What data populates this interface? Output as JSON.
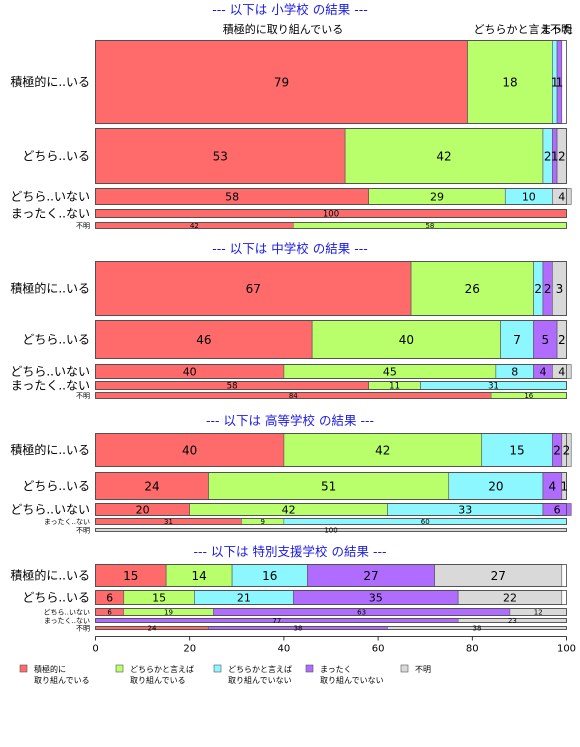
{
  "chart_data": {
    "type": "bar",
    "orientation": "horizontal",
    "stacked": "100%",
    "xlim": [
      0,
      100
    ],
    "xticks": [
      0,
      20,
      40,
      60,
      80,
      100
    ],
    "categories": [
      "積極的に取り組んでいる",
      "どちらかと言えば取り組んでいる",
      "どちらかと言えば取り組んでいない",
      "まったく取り組んでいない",
      "不明"
    ],
    "legend": {
      "position": "bottom",
      "items": [
        {
          "line1": "積極的に",
          "line2": "取り組んでいる",
          "color": "#ff6b6b"
        },
        {
          "line1": "どちらかと言えば",
          "line2": "取り組んでいる",
          "color": "#b8ff6b"
        },
        {
          "line1": "どちらかと言えば",
          "line2": "取り組んでいない",
          "color": "#8cf7ff"
        },
        {
          "line1": "まったく",
          "line2": "取り組んでいない",
          "color": "#b06bff"
        },
        {
          "line1": "不明",
          "line2": "",
          "color": "#d9d9d9"
        }
      ]
    },
    "top_labels": [
      "積極的に取り組んでいる",
      "どちらかと言え",
      "まった",
      "不明"
    ],
    "sections": [
      {
        "title": "--- 以下は 小学校 の結果 ---",
        "rows": [
          {
            "label": "積極的に..いる",
            "values": [
              79,
              18,
              1,
              1,
              0
            ],
            "labels": [
              "79",
              "18",
              "1",
              "1",
              ""
            ]
          },
          {
            "label": "どちら..いる",
            "values": [
              53,
              42,
              2,
              1,
              2
            ],
            "labels": [
              "53",
              "42",
              "2",
              "1",
              "2"
            ]
          },
          {
            "label": "どちら..いない",
            "values": [
              58,
              29,
              10,
              0,
              4
            ],
            "labels": [
              "58",
              "29",
              "10",
              "",
              "4"
            ]
          },
          {
            "label": "まったく..ない",
            "values": [
              100,
              0,
              0,
              0,
              0
            ],
            "labels": [
              "100",
              "",
              "",
              "",
              ""
            ]
          },
          {
            "label": "不明",
            "values": [
              42,
              58,
              0,
              0,
              0
            ],
            "labels": [
              "42",
              "58",
              "",
              "",
              ""
            ]
          }
        ]
      },
      {
        "title": "--- 以下は 中学校 の結果 ---",
        "rows": [
          {
            "label": "積極的に..いる",
            "values": [
              67,
              26,
              2,
              2,
              3
            ],
            "labels": [
              "67",
              "26",
              "2",
              "2",
              "3"
            ]
          },
          {
            "label": "どちら..いる",
            "values": [
              46,
              40,
              7,
              5,
              2
            ],
            "labels": [
              "46",
              "40",
              "7",
              "5",
              "2"
            ]
          },
          {
            "label": "どちら..いない",
            "values": [
              40,
              45,
              8,
              4,
              4
            ],
            "labels": [
              "40",
              "45",
              "8",
              "4",
              "4"
            ]
          },
          {
            "label": "まったく..ない",
            "values": [
              58,
              11,
              31,
              0,
              0
            ],
            "labels": [
              "58",
              "11",
              "31",
              "",
              ""
            ]
          },
          {
            "label": "不明",
            "values": [
              84,
              16,
              0,
              0,
              0
            ],
            "labels": [
              "84",
              "16",
              "",
              "",
              ""
            ]
          }
        ]
      },
      {
        "title": "--- 以下は 高等学校 の結果 ---",
        "rows": [
          {
            "label": "積極的に..いる",
            "values": [
              40,
              42,
              15,
              2,
              2
            ],
            "labels": [
              "40",
              "42",
              "15",
              "2",
              "2"
            ]
          },
          {
            "label": "どちら..いる",
            "values": [
              24,
              51,
              20,
              4,
              1
            ],
            "labels": [
              "24",
              "51",
              "20",
              "4",
              "1"
            ]
          },
          {
            "label": "どちら..いない",
            "values": [
              20,
              42,
              33,
              6,
              0
            ],
            "labels": [
              "20",
              "42",
              "33",
              "6",
              ""
            ]
          },
          {
            "label": "まったく..ない",
            "values": [
              31,
              9,
              60,
              0,
              0
            ],
            "labels": [
              "31",
              "9",
              "60",
              "",
              ""
            ]
          },
          {
            "label": "不明",
            "values": [
              0,
              0,
              0,
              0,
              100
            ],
            "labels": [
              "",
              "",
              "",
              "",
              "100"
            ]
          }
        ]
      },
      {
        "title": "--- 以下は 特別支援学校 の結果 ---",
        "rows": [
          {
            "label": "積極的に..いる",
            "values": [
              15,
              14,
              16,
              27,
              27
            ],
            "labels": [
              "15",
              "14",
              "16",
              "27",
              "27"
            ]
          },
          {
            "label": "どちら..いる",
            "values": [
              6,
              15,
              21,
              35,
              22
            ],
            "labels": [
              "6",
              "15",
              "21",
              "35",
              "22"
            ]
          },
          {
            "label": "どちら..いない",
            "values": [
              6,
              19,
              0,
              63,
              12
            ],
            "labels": [
              "6",
              "19",
              "",
              "63",
              "12"
            ]
          },
          {
            "label": "まったく..ない",
            "values": [
              0,
              0,
              0,
              77,
              23
            ],
            "labels": [
              "",
              "",
              "",
              "77",
              "23"
            ]
          },
          {
            "label": "不明",
            "values": [
              24,
              0,
              0,
              38,
              38
            ],
            "labels": [
              "24",
              "",
              "",
              "38",
              "38"
            ]
          }
        ]
      }
    ]
  }
}
